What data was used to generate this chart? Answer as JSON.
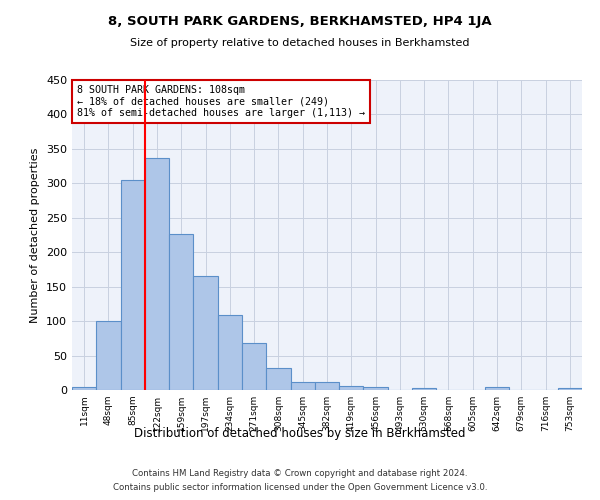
{
  "title": "8, SOUTH PARK GARDENS, BERKHAMSTED, HP4 1JA",
  "subtitle": "Size of property relative to detached houses in Berkhamsted",
  "xlabel": "Distribution of detached houses by size in Berkhamsted",
  "ylabel": "Number of detached properties",
  "footer_line1": "Contains HM Land Registry data © Crown copyright and database right 2024.",
  "footer_line2": "Contains public sector information licensed under the Open Government Licence v3.0.",
  "bar_labels": [
    "11sqm",
    "48sqm",
    "85sqm",
    "122sqm",
    "159sqm",
    "197sqm",
    "234sqm",
    "271sqm",
    "308sqm",
    "345sqm",
    "382sqm",
    "419sqm",
    "456sqm",
    "493sqm",
    "530sqm",
    "568sqm",
    "605sqm",
    "642sqm",
    "679sqm",
    "716sqm",
    "753sqm"
  ],
  "bar_values": [
    5,
    100,
    305,
    337,
    226,
    165,
    109,
    68,
    32,
    12,
    11,
    6,
    4,
    0,
    3,
    0,
    0,
    4,
    0,
    0,
    3
  ],
  "bar_color": "#aec6e8",
  "bar_edge_color": "#5b8fc9",
  "ylim": [
    0,
    450
  ],
  "yticks": [
    0,
    50,
    100,
    150,
    200,
    250,
    300,
    350,
    400,
    450
  ],
  "property_label": "8 SOUTH PARK GARDENS: 108sqm",
  "pct_smaller": "18% of detached houses are smaller (249)",
  "pct_larger": "81% of semi-detached houses are larger (1,113)",
  "vline_x_index": 2.5,
  "annotation_box_color": "#cc0000",
  "bg_color": "#eef2fa",
  "grid_color": "#c8d0e0"
}
